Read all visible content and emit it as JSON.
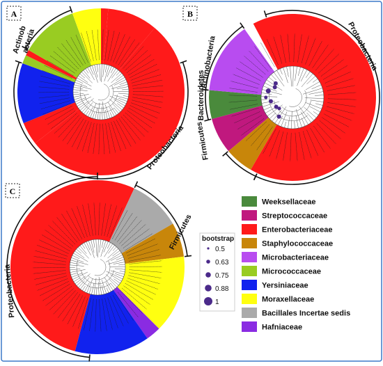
{
  "colors": {
    "frame": "#3b78c8",
    "Weeksellaceae": "#4a8a3c",
    "Streptococcaceae": "#c0187e",
    "Enterobacteriaceae": "#ff1a1a",
    "Staphylococcaceae": "#c8860a",
    "Microbacteriaceae": "#b84cf0",
    "Micrococcaceae": "#99cc22",
    "Yersiniaceae": "#1122ee",
    "Moraxellaceae": "#ffff10",
    "Bacillales Incertae sedis": "#aaaaaa",
    "Hafniaceae": "#8a2be2",
    "bootstrap_dot": "#4b2a8a"
  },
  "panels": [
    {
      "id": "A",
      "label": "A",
      "clade_labels": [
        "Actinob",
        "acteria",
        "Proteobacteria"
      ]
    },
    {
      "id": "B",
      "label": "B",
      "clade_labels": [
        "Actinobacteria",
        "Proteobacteria",
        "Bacteroidetes",
        "Firmicutes"
      ]
    },
    {
      "id": "C",
      "label": "C",
      "clade_labels": [
        "Proteobacteria",
        "Firmicutes"
      ]
    }
  ],
  "legend": {
    "items": [
      {
        "name": "Weeksellaceae",
        "color": "#4a8a3c"
      },
      {
        "name": "Streptococcaceae",
        "color": "#c0187e"
      },
      {
        "name": "Enterobacteriaceae",
        "color": "#ff1a1a"
      },
      {
        "name": "Staphylococcaceae",
        "color": "#c8860a"
      },
      {
        "name": "Microbacteriaceae",
        "color": "#b84cf0"
      },
      {
        "name": "Micrococcaceae",
        "color": "#99cc22"
      },
      {
        "name": "Yersiniaceae",
        "color": "#1122ee"
      },
      {
        "name": "Moraxellaceae",
        "color": "#ffff10"
      },
      {
        "name": "Bacillales Incertae sedis",
        "color": "#aaaaaa"
      },
      {
        "name": "Hafniaceae",
        "color": "#8a2be2"
      }
    ]
  },
  "bootstrap": {
    "title": "bootstrap",
    "values": [
      "0.5",
      "0.63",
      "0.75",
      "0.88",
      "1"
    ]
  }
}
